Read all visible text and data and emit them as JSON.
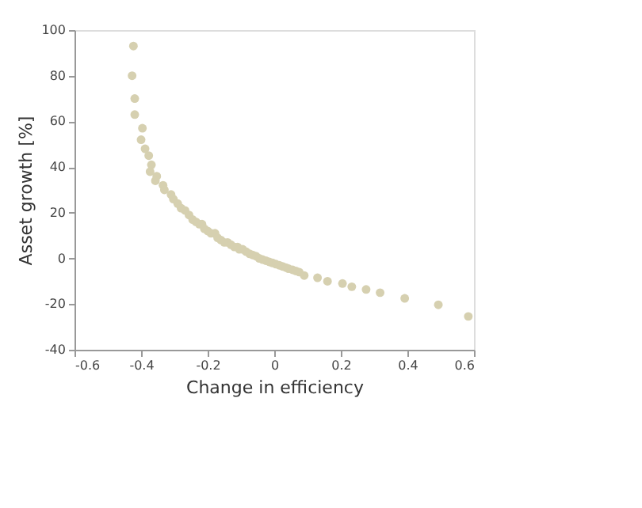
{
  "chart_data": {
    "type": "scatter",
    "xlabel": "Change in efficiency",
    "ylabel": "Asset growth [%]",
    "x": [
      -0.423,
      -0.427,
      -0.419,
      -0.419,
      -0.396,
      -0.4,
      -0.388,
      -0.377,
      -0.369,
      -0.373,
      -0.353,
      -0.357,
      -0.334,
      -0.33,
      -0.31,
      -0.303,
      -0.29,
      -0.28,
      -0.268,
      -0.256,
      -0.245,
      -0.235,
      -0.225,
      -0.217,
      -0.21,
      -0.2,
      -0.19,
      -0.178,
      -0.17,
      -0.16,
      -0.15,
      -0.14,
      -0.13,
      -0.12,
      -0.11,
      -0.105,
      -0.095,
      -0.085,
      -0.074,
      -0.065,
      -0.055,
      -0.045,
      -0.035,
      -0.025,
      -0.015,
      -0.005,
      0.005,
      0.015,
      0.025,
      0.035,
      0.043,
      0.055,
      0.065,
      0.075,
      0.09,
      0.13,
      0.16,
      0.205,
      0.233,
      0.276,
      0.318,
      0.392,
      0.493,
      0.583
    ],
    "values": [
      93,
      80,
      70,
      63,
      57,
      52,
      48,
      45,
      41,
      38,
      36,
      34,
      32,
      30,
      28,
      26,
      24,
      22,
      21,
      19,
      17,
      16,
      15,
      15,
      13,
      12,
      11,
      11,
      9,
      8,
      7,
      7,
      6,
      5,
      5,
      4,
      4,
      3,
      2,
      1.5,
      1,
      0,
      -0.5,
      -1,
      -1.5,
      -2,
      -2.5,
      -3,
      -3.5,
      -4,
      -4.5,
      -5,
      -5.5,
      -6,
      -7.5,
      -8.5,
      -10,
      -11,
      -12.4,
      -13.6,
      -15,
      -17.5,
      -20.3,
      -25.4
    ],
    "color": "#d6d0b0",
    "marker": "circle",
    "xlim": [
      -0.6,
      0.6
    ],
    "xticks": [
      -0.6,
      -0.4,
      -0.2,
      0,
      0.2,
      0.4,
      0.6
    ],
    "ylim": [
      -40,
      100
    ],
    "yticks": [
      -40,
      -20,
      0,
      20,
      40,
      60,
      80,
      100
    ],
    "grid": false
  }
}
